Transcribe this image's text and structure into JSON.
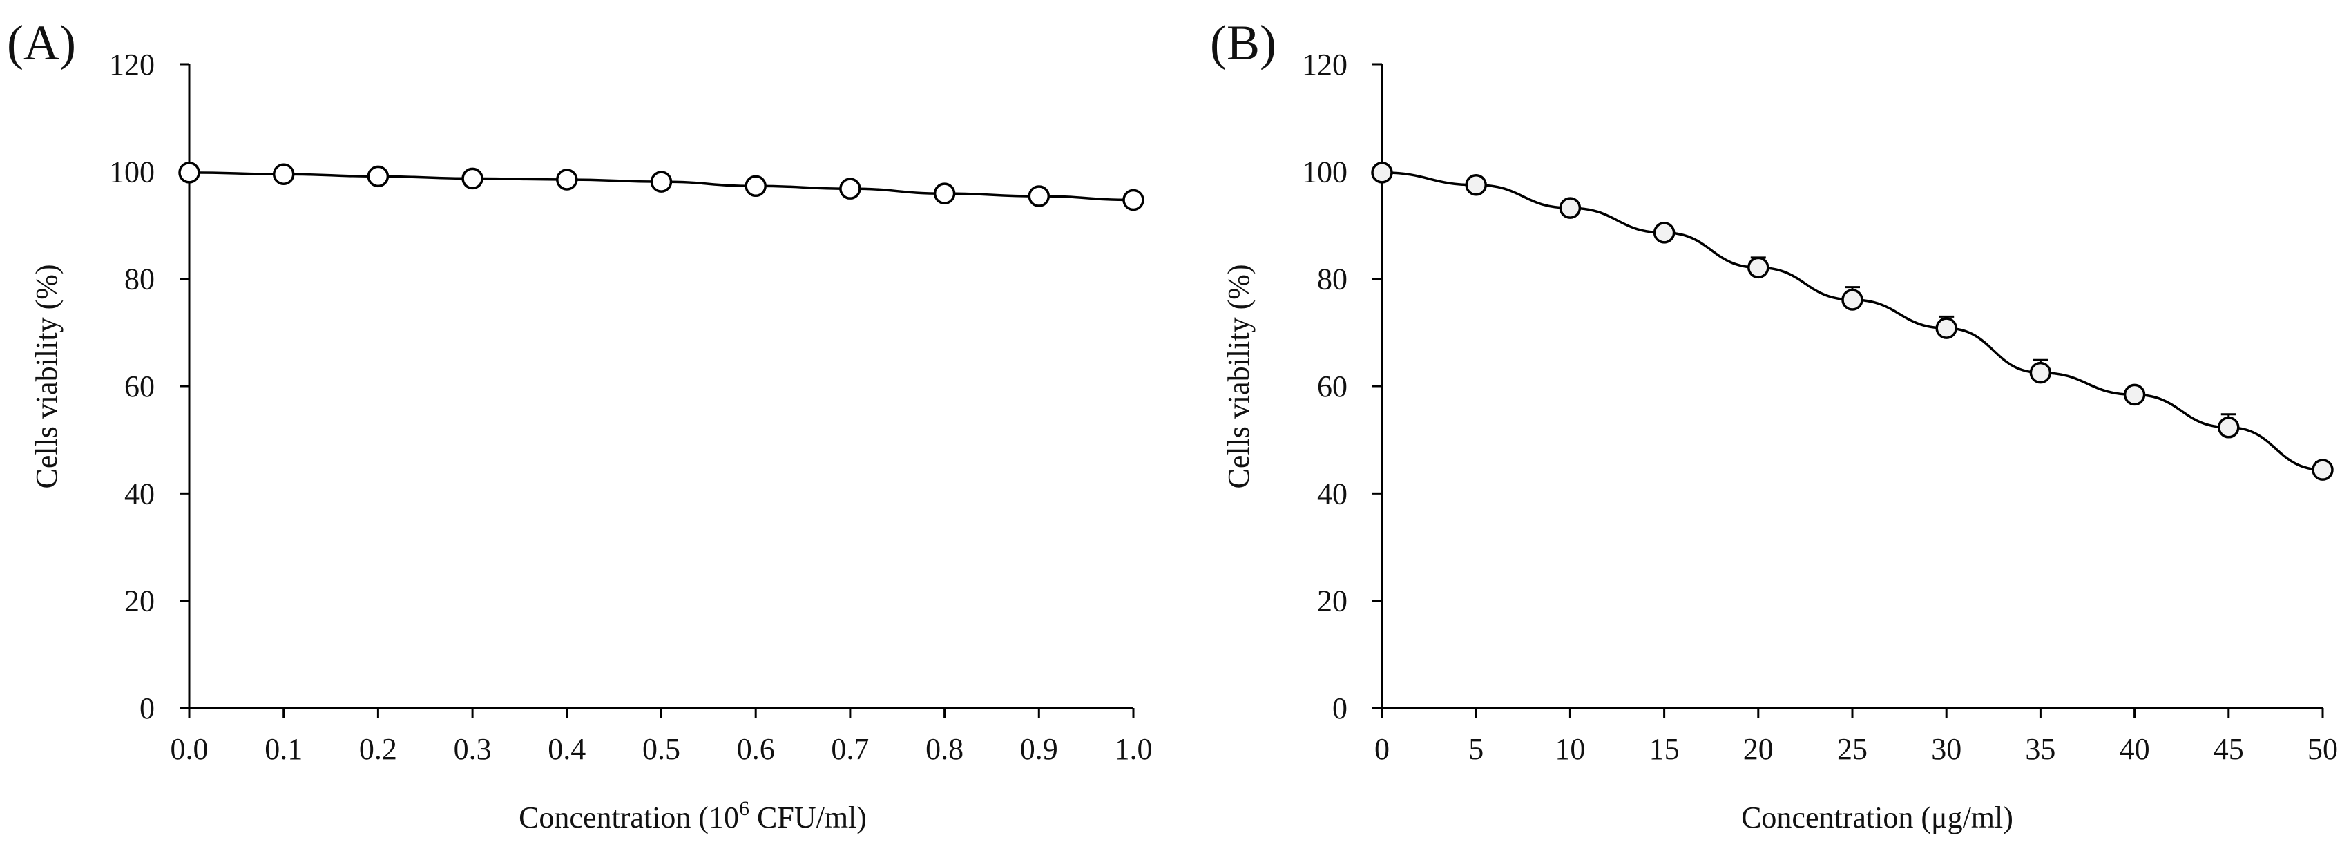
{
  "chart_data": [
    {
      "panel_label": "(A)",
      "type": "line",
      "x": [
        0.0,
        0.1,
        0.2,
        0.3,
        0.4,
        0.5,
        0.6,
        0.7,
        0.8,
        0.9,
        1.0
      ],
      "x_tick_labels": [
        "0.0",
        "0.1",
        "0.2",
        "0.3",
        "0.4",
        "0.5",
        "0.6",
        "0.7",
        "0.8",
        "0.9",
        "1.0"
      ],
      "series": [
        {
          "name": "Cells viability",
          "values": [
            99.8,
            99.5,
            99.1,
            98.7,
            98.5,
            98.1,
            97.3,
            96.8,
            95.9,
            95.4,
            94.7
          ],
          "error": [
            0,
            0,
            0,
            0,
            0,
            0,
            0,
            0,
            0,
            0,
            0
          ]
        }
      ],
      "marker": "open-circle",
      "xlabel_main": "Concentration (10",
      "xlabel_sup": "6",
      "xlabel_tail": " CFU/ml)",
      "ylabel": "Cells viability (%)",
      "ylim": [
        0,
        120
      ],
      "y_ticks": [
        0,
        20,
        40,
        60,
        80,
        100,
        120
      ],
      "xlim": [
        0,
        1.0
      ],
      "grid": false,
      "color": "#000000",
      "marker_fill": "#ffffff"
    },
    {
      "panel_label": "(B)",
      "type": "line",
      "x": [
        0,
        5,
        10,
        15,
        20,
        25,
        30,
        35,
        40,
        45,
        50
      ],
      "x_tick_labels": [
        "0",
        "5",
        "10",
        "15",
        "20",
        "25",
        "30",
        "35",
        "40",
        "45",
        "50"
      ],
      "series": [
        {
          "name": "Cells viability",
          "values": [
            99.8,
            97.5,
            93.2,
            88.6,
            82.1,
            76.1,
            70.8,
            62.5,
            58.4,
            52.3,
            44.4
          ],
          "error": [
            0,
            0.6,
            0.8,
            0.9,
            1.6,
            2.1,
            1.9,
            2.1,
            0.8,
            2.2,
            1.2
          ]
        }
      ],
      "marker": "open-circle",
      "xlabel_main": "Concentration (μg/ml)",
      "xlabel_sup": "",
      "xlabel_tail": "",
      "ylabel": "Cells viability (%)",
      "ylim": [
        0,
        120
      ],
      "y_ticks": [
        0,
        20,
        40,
        60,
        80,
        100,
        120
      ],
      "xlim": [
        0,
        50
      ],
      "grid": false,
      "color": "#000000",
      "marker_fill": "#f2f2f2"
    }
  ]
}
